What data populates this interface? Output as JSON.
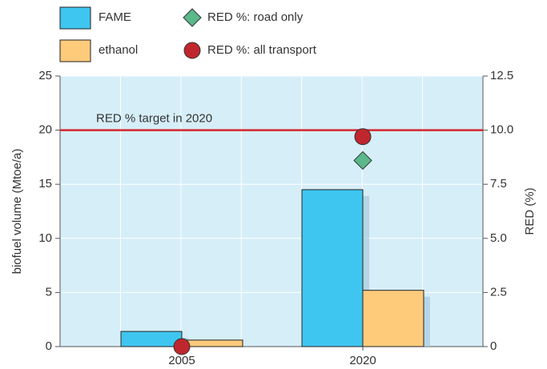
{
  "chart_data": {
    "type": "bar",
    "categories": [
      "2005",
      "2020"
    ],
    "series": [
      {
        "name": "FAME",
        "color": "#3ec6f0",
        "values": [
          1.4,
          14.5
        ]
      },
      {
        "name": "ethanol",
        "color": "#fecb7b",
        "values": [
          0.6,
          5.2
        ]
      },
      {
        "name": "RED %: road only",
        "color": "#5ab88a",
        "marker": "diamond",
        "axis": "y2",
        "values": [
          null,
          8.6
        ]
      },
      {
        "name": "RED %: all transport",
        "color": "#c0262d",
        "marker": "circle",
        "axis": "y2",
        "values": [
          0,
          9.7
        ]
      }
    ],
    "ylabel": "biofuel volume (Mtoe/a)",
    "y2label": "RED (%)",
    "ylim": [
      0,
      25
    ],
    "yticks": [
      0,
      5,
      10,
      15,
      20,
      25
    ],
    "y2lim": [
      0,
      12.5
    ],
    "y2ticks": [
      0,
      2.5,
      {
        "value": 5,
        "label": "5.0"
      },
      7.5,
      {
        "value": 10,
        "label": "10.0"
      },
      12.5
    ],
    "target": {
      "value": 10,
      "axis": "y2",
      "label": "RED % target in 2020",
      "color": "#d7262d"
    },
    "grid": true,
    "legend": "top"
  }
}
